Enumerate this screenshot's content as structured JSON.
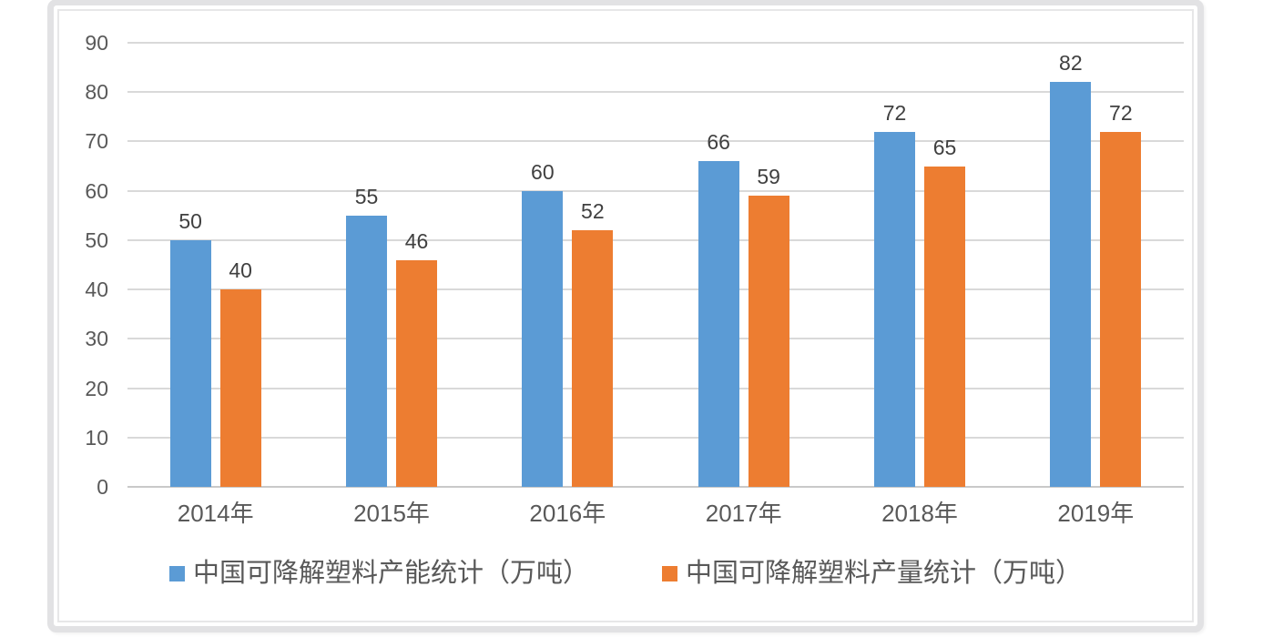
{
  "chart_data": {
    "type": "bar",
    "title": "",
    "xlabel": "",
    "ylabel": "",
    "categories": [
      "2014年",
      "2015年",
      "2016年",
      "2017年",
      "2018年",
      "2019年"
    ],
    "series": [
      {
        "name": "中国可降解塑料产能统计（万吨）",
        "color": "#5B9BD5",
        "values": [
          50,
          55,
          60,
          66,
          72,
          82
        ]
      },
      {
        "name": "中国可降解塑料产量统计（万吨）",
        "color": "#ED7D31",
        "values": [
          40,
          46,
          52,
          59,
          65,
          72
        ]
      }
    ],
    "ylim": [
      0,
      90
    ],
    "yticks": [
      0,
      10,
      20,
      30,
      40,
      50,
      60,
      70,
      80,
      90
    ],
    "grid": true,
    "grid_color": "#D9D9D9",
    "axis_line_color": "#C9C9C9",
    "tick_label_color": "#595959",
    "data_label_color": "#404040",
    "data_labels": true,
    "legend_position": "bottom"
  },
  "frame": {
    "border_color": "#E2E2E4",
    "inner_border_color": "#E7E7E8",
    "background": "#FFFFFF"
  }
}
